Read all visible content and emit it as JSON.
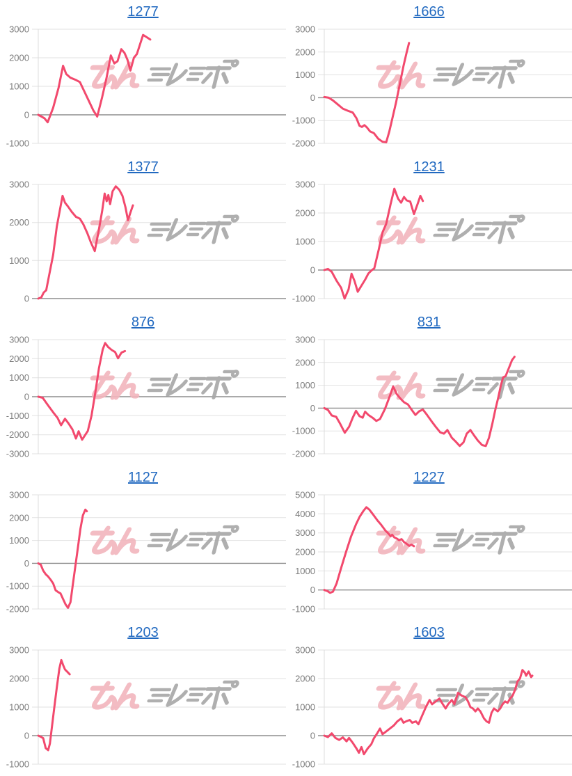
{
  "style": {
    "line_color": "#f2496d",
    "grid_color": "#e2e2e2",
    "zero_line_color": "#8e8e8e",
    "axis_line_color": "#dcdcdc",
    "axis_label_color": "#7c7c7c",
    "title_color": "#2169c0",
    "background": "#ffffff"
  },
  "watermark": {
    "text": "みんレポ",
    "pink_color": "#f2b5bd",
    "gray_color": "#a7a7a7"
  },
  "chart_data": [
    {
      "type": "line",
      "title": "1277",
      "xlabel": "",
      "ylabel": "",
      "ylim": [
        -1000,
        3000
      ],
      "ytick_step": 1000,
      "grid": true,
      "legend": "none",
      "points": [
        [
          0,
          0
        ],
        [
          0.013,
          -60
        ],
        [
          0.025,
          -120
        ],
        [
          0.038,
          -260
        ],
        [
          0.06,
          250
        ],
        [
          0.082,
          950
        ],
        [
          0.1,
          1720
        ],
        [
          0.113,
          1430
        ],
        [
          0.13,
          1300
        ],
        [
          0.15,
          1230
        ],
        [
          0.168,
          1150
        ],
        [
          0.186,
          820
        ],
        [
          0.205,
          470
        ],
        [
          0.222,
          160
        ],
        [
          0.238,
          -60
        ],
        [
          0.258,
          620
        ],
        [
          0.276,
          1320
        ],
        [
          0.293,
          2080
        ],
        [
          0.307,
          1800
        ],
        [
          0.32,
          1880
        ],
        [
          0.335,
          2300
        ],
        [
          0.348,
          2170
        ],
        [
          0.36,
          1930
        ],
        [
          0.372,
          1550
        ],
        [
          0.386,
          2000
        ],
        [
          0.398,
          2130
        ],
        [
          0.423,
          2800
        ],
        [
          0.438,
          2720
        ],
        [
          0.452,
          2640
        ]
      ]
    },
    {
      "type": "line",
      "title": "1666",
      "xlabel": "",
      "ylabel": "",
      "ylim": [
        -2000,
        3000
      ],
      "ytick_step": 1000,
      "grid": true,
      "legend": "none",
      "points": [
        [
          0,
          30
        ],
        [
          0.018,
          0
        ],
        [
          0.035,
          -120
        ],
        [
          0.055,
          -300
        ],
        [
          0.075,
          -480
        ],
        [
          0.095,
          -570
        ],
        [
          0.115,
          -650
        ],
        [
          0.13,
          -900
        ],
        [
          0.142,
          -1230
        ],
        [
          0.152,
          -1280
        ],
        [
          0.162,
          -1200
        ],
        [
          0.172,
          -1300
        ],
        [
          0.185,
          -1480
        ],
        [
          0.2,
          -1550
        ],
        [
          0.218,
          -1800
        ],
        [
          0.235,
          -1930
        ],
        [
          0.25,
          -1950
        ],
        [
          0.262,
          -1500
        ],
        [
          0.275,
          -900
        ],
        [
          0.29,
          -200
        ],
        [
          0.305,
          600
        ],
        [
          0.32,
          1400
        ],
        [
          0.333,
          2000
        ],
        [
          0.342,
          2400
        ]
      ]
    },
    {
      "type": "line",
      "title": "1377",
      "xlabel": "",
      "ylabel": "",
      "ylim": [
        0,
        3000
      ],
      "ytick_step": 1000,
      "grid": true,
      "legend": "none",
      "points": [
        [
          0,
          0
        ],
        [
          0.012,
          30
        ],
        [
          0.022,
          160
        ],
        [
          0.032,
          220
        ],
        [
          0.045,
          650
        ],
        [
          0.06,
          1150
        ],
        [
          0.075,
          1900
        ],
        [
          0.088,
          2350
        ],
        [
          0.098,
          2700
        ],
        [
          0.108,
          2520
        ],
        [
          0.12,
          2420
        ],
        [
          0.135,
          2280
        ],
        [
          0.152,
          2150
        ],
        [
          0.168,
          2100
        ],
        [
          0.182,
          1950
        ],
        [
          0.198,
          1720
        ],
        [
          0.212,
          1480
        ],
        [
          0.228,
          1250
        ],
        [
          0.243,
          1750
        ],
        [
          0.258,
          2300
        ],
        [
          0.268,
          2760
        ],
        [
          0.276,
          2560
        ],
        [
          0.283,
          2720
        ],
        [
          0.29,
          2480
        ],
        [
          0.3,
          2820
        ],
        [
          0.313,
          2950
        ],
        [
          0.327,
          2860
        ],
        [
          0.34,
          2700
        ],
        [
          0.352,
          2400
        ],
        [
          0.362,
          2060
        ],
        [
          0.372,
          2260
        ],
        [
          0.382,
          2450
        ]
      ]
    },
    {
      "type": "line",
      "title": "1231",
      "xlabel": "",
      "ylabel": "",
      "ylim": [
        -1000,
        3000
      ],
      "ytick_step": 1000,
      "grid": true,
      "legend": "none",
      "points": [
        [
          0,
          0
        ],
        [
          0.015,
          40
        ],
        [
          0.03,
          -60
        ],
        [
          0.05,
          -380
        ],
        [
          0.068,
          -620
        ],
        [
          0.082,
          -1000
        ],
        [
          0.098,
          -680
        ],
        [
          0.11,
          -130
        ],
        [
          0.122,
          -380
        ],
        [
          0.135,
          -760
        ],
        [
          0.15,
          -550
        ],
        [
          0.165,
          -340
        ],
        [
          0.178,
          -120
        ],
        [
          0.19,
          -20
        ],
        [
          0.202,
          60
        ],
        [
          0.22,
          720
        ],
        [
          0.235,
          1320
        ],
        [
          0.25,
          1620
        ],
        [
          0.268,
          2320
        ],
        [
          0.283,
          2850
        ],
        [
          0.298,
          2500
        ],
        [
          0.31,
          2360
        ],
        [
          0.322,
          2560
        ],
        [
          0.333,
          2440
        ],
        [
          0.347,
          2400
        ],
        [
          0.362,
          1960
        ],
        [
          0.377,
          2320
        ],
        [
          0.388,
          2600
        ],
        [
          0.398,
          2420
        ]
      ]
    },
    {
      "type": "line",
      "title": "876",
      "xlabel": "",
      "ylabel": "",
      "ylim": [
        -3000,
        3000
      ],
      "ytick_step": 1000,
      "grid": true,
      "legend": "none",
      "points": [
        [
          0,
          0
        ],
        [
          0.018,
          -60
        ],
        [
          0.04,
          -460
        ],
        [
          0.06,
          -820
        ],
        [
          0.078,
          -1120
        ],
        [
          0.092,
          -1500
        ],
        [
          0.108,
          -1160
        ],
        [
          0.122,
          -1400
        ],
        [
          0.138,
          -1720
        ],
        [
          0.152,
          -2200
        ],
        [
          0.163,
          -1820
        ],
        [
          0.177,
          -2260
        ],
        [
          0.19,
          -2000
        ],
        [
          0.2,
          -1800
        ],
        [
          0.215,
          -1000
        ],
        [
          0.23,
          200
        ],
        [
          0.245,
          1500
        ],
        [
          0.26,
          2480
        ],
        [
          0.27,
          2820
        ],
        [
          0.283,
          2600
        ],
        [
          0.297,
          2450
        ],
        [
          0.31,
          2350
        ],
        [
          0.322,
          2020
        ],
        [
          0.336,
          2320
        ],
        [
          0.35,
          2400
        ]
      ]
    },
    {
      "type": "line",
      "title": "831",
      "xlabel": "",
      "ylabel": "",
      "ylim": [
        -2000,
        3000
      ],
      "ytick_step": 1000,
      "grid": true,
      "legend": "none",
      "points": [
        [
          0,
          0
        ],
        [
          0.015,
          -80
        ],
        [
          0.03,
          -320
        ],
        [
          0.048,
          -380
        ],
        [
          0.065,
          -700
        ],
        [
          0.083,
          -1080
        ],
        [
          0.1,
          -820
        ],
        [
          0.115,
          -420
        ],
        [
          0.128,
          -120
        ],
        [
          0.142,
          -350
        ],
        [
          0.155,
          -420
        ],
        [
          0.165,
          -160
        ],
        [
          0.178,
          -300
        ],
        [
          0.195,
          -420
        ],
        [
          0.21,
          -560
        ],
        [
          0.225,
          -480
        ],
        [
          0.245,
          -40
        ],
        [
          0.263,
          480
        ],
        [
          0.278,
          950
        ],
        [
          0.292,
          620
        ],
        [
          0.307,
          420
        ],
        [
          0.322,
          260
        ],
        [
          0.338,
          160
        ],
        [
          0.353,
          -80
        ],
        [
          0.368,
          -300
        ],
        [
          0.383,
          -140
        ],
        [
          0.398,
          -60
        ],
        [
          0.415,
          -300
        ],
        [
          0.432,
          -560
        ],
        [
          0.45,
          -820
        ],
        [
          0.468,
          -1060
        ],
        [
          0.483,
          -1120
        ],
        [
          0.497,
          -960
        ],
        [
          0.515,
          -1300
        ],
        [
          0.53,
          -1460
        ],
        [
          0.547,
          -1660
        ],
        [
          0.562,
          -1500
        ],
        [
          0.575,
          -1120
        ],
        [
          0.59,
          -960
        ],
        [
          0.605,
          -1200
        ],
        [
          0.62,
          -1420
        ],
        [
          0.637,
          -1620
        ],
        [
          0.652,
          -1660
        ],
        [
          0.665,
          -1300
        ],
        [
          0.678,
          -700
        ],
        [
          0.69,
          -100
        ],
        [
          0.703,
          500
        ],
        [
          0.713,
          1000
        ],
        [
          0.722,
          1350
        ],
        [
          0.732,
          1400
        ],
        [
          0.745,
          1750
        ],
        [
          0.758,
          2100
        ],
        [
          0.768,
          2250
        ]
      ]
    },
    {
      "type": "line",
      "title": "1127",
      "xlabel": "",
      "ylabel": "",
      "ylim": [
        -2000,
        3000
      ],
      "ytick_step": 1000,
      "grid": true,
      "legend": "none",
      "points": [
        [
          0,
          0
        ],
        [
          0.01,
          -60
        ],
        [
          0.02,
          -320
        ],
        [
          0.03,
          -480
        ],
        [
          0.04,
          -580
        ],
        [
          0.05,
          -720
        ],
        [
          0.06,
          -880
        ],
        [
          0.07,
          -1180
        ],
        [
          0.08,
          -1260
        ],
        [
          0.09,
          -1320
        ],
        [
          0.1,
          -1560
        ],
        [
          0.11,
          -1800
        ],
        [
          0.12,
          -1950
        ],
        [
          0.13,
          -1700
        ],
        [
          0.14,
          -900
        ],
        [
          0.15,
          -100
        ],
        [
          0.16,
          700
        ],
        [
          0.17,
          1500
        ],
        [
          0.18,
          2100
        ],
        [
          0.19,
          2350
        ],
        [
          0.196,
          2280
        ]
      ]
    },
    {
      "type": "line",
      "title": "1227",
      "xlabel": "",
      "ylabel": "",
      "ylim": [
        -1000,
        5000
      ],
      "ytick_step": 1000,
      "grid": true,
      "legend": "none",
      "points": [
        [
          0,
          0
        ],
        [
          0.013,
          -60
        ],
        [
          0.024,
          -150
        ],
        [
          0.035,
          -90
        ],
        [
          0.05,
          350
        ],
        [
          0.068,
          1150
        ],
        [
          0.088,
          2000
        ],
        [
          0.108,
          2800
        ],
        [
          0.128,
          3450
        ],
        [
          0.143,
          3850
        ],
        [
          0.158,
          4150
        ],
        [
          0.17,
          4350
        ],
        [
          0.182,
          4220
        ],
        [
          0.198,
          3950
        ],
        [
          0.215,
          3650
        ],
        [
          0.23,
          3420
        ],
        [
          0.247,
          3120
        ],
        [
          0.258,
          2980
        ],
        [
          0.268,
          2820
        ],
        [
          0.274,
          2900
        ],
        [
          0.283,
          2760
        ],
        [
          0.293,
          2700
        ],
        [
          0.302,
          2620
        ],
        [
          0.312,
          2670
        ],
        [
          0.322,
          2520
        ],
        [
          0.333,
          2420
        ],
        [
          0.343,
          2320
        ],
        [
          0.352,
          2380
        ],
        [
          0.362,
          2300
        ]
      ]
    },
    {
      "type": "line",
      "title": "1203",
      "xlabel": "",
      "ylabel": "",
      "ylim": [
        -1000,
        3000
      ],
      "ytick_step": 1000,
      "grid": true,
      "legend": "none",
      "points": [
        [
          0,
          0
        ],
        [
          0.01,
          -40
        ],
        [
          0.02,
          -90
        ],
        [
          0.03,
          -440
        ],
        [
          0.04,
          -510
        ],
        [
          0.047,
          -280
        ],
        [
          0.055,
          300
        ],
        [
          0.065,
          1000
        ],
        [
          0.075,
          1700
        ],
        [
          0.085,
          2350
        ],
        [
          0.093,
          2650
        ],
        [
          0.1,
          2480
        ],
        [
          0.108,
          2320
        ],
        [
          0.118,
          2230
        ],
        [
          0.127,
          2150
        ]
      ]
    },
    {
      "type": "line",
      "title": "1603",
      "xlabel": "",
      "ylabel": "",
      "ylim": [
        -1000,
        3000
      ],
      "ytick_step": 1000,
      "grid": true,
      "legend": "none",
      "points": [
        [
          0,
          0
        ],
        [
          0.015,
          -50
        ],
        [
          0.03,
          80
        ],
        [
          0.045,
          -80
        ],
        [
          0.06,
          -150
        ],
        [
          0.075,
          -60
        ],
        [
          0.09,
          -200
        ],
        [
          0.1,
          -80
        ],
        [
          0.115,
          -250
        ],
        [
          0.13,
          -450
        ],
        [
          0.14,
          -600
        ],
        [
          0.15,
          -400
        ],
        [
          0.16,
          -650
        ],
        [
          0.175,
          -450
        ],
        [
          0.19,
          -300
        ],
        [
          0.2,
          -100
        ],
        [
          0.215,
          100
        ],
        [
          0.225,
          250
        ],
        [
          0.235,
          50
        ],
        [
          0.25,
          150
        ],
        [
          0.265,
          250
        ],
        [
          0.28,
          350
        ],
        [
          0.295,
          500
        ],
        [
          0.31,
          600
        ],
        [
          0.32,
          450
        ],
        [
          0.33,
          500
        ],
        [
          0.345,
          550
        ],
        [
          0.355,
          450
        ],
        [
          0.37,
          500
        ],
        [
          0.38,
          400
        ],
        [
          0.395,
          700
        ],
        [
          0.41,
          1000
        ],
        [
          0.425,
          1250
        ],
        [
          0.435,
          1100
        ],
        [
          0.45,
          1200
        ],
        [
          0.465,
          1300
        ],
        [
          0.475,
          1150
        ],
        [
          0.49,
          950
        ],
        [
          0.5,
          1100
        ],
        [
          0.515,
          1250
        ],
        [
          0.525,
          1100
        ],
        [
          0.54,
          1500
        ],
        [
          0.555,
          1400
        ],
        [
          0.57,
          1350
        ],
        [
          0.58,
          1200
        ],
        [
          0.59,
          1000
        ],
        [
          0.6,
          950
        ],
        [
          0.61,
          850
        ],
        [
          0.62,
          950
        ],
        [
          0.63,
          850
        ],
        [
          0.645,
          600
        ],
        [
          0.655,
          500
        ],
        [
          0.665,
          450
        ],
        [
          0.675,
          800
        ],
        [
          0.685,
          950
        ],
        [
          0.7,
          850
        ],
        [
          0.71,
          950
        ],
        [
          0.72,
          1100
        ],
        [
          0.73,
          1200
        ],
        [
          0.74,
          1150
        ],
        [
          0.75,
          1300
        ],
        [
          0.76,
          1400
        ],
        [
          0.77,
          1600
        ],
        [
          0.78,
          1900
        ],
        [
          0.79,
          2000
        ],
        [
          0.8,
          2300
        ],
        [
          0.81,
          2200
        ],
        [
          0.815,
          2100
        ],
        [
          0.825,
          2250
        ],
        [
          0.835,
          2050
        ],
        [
          0.84,
          2100
        ]
      ]
    }
  ]
}
